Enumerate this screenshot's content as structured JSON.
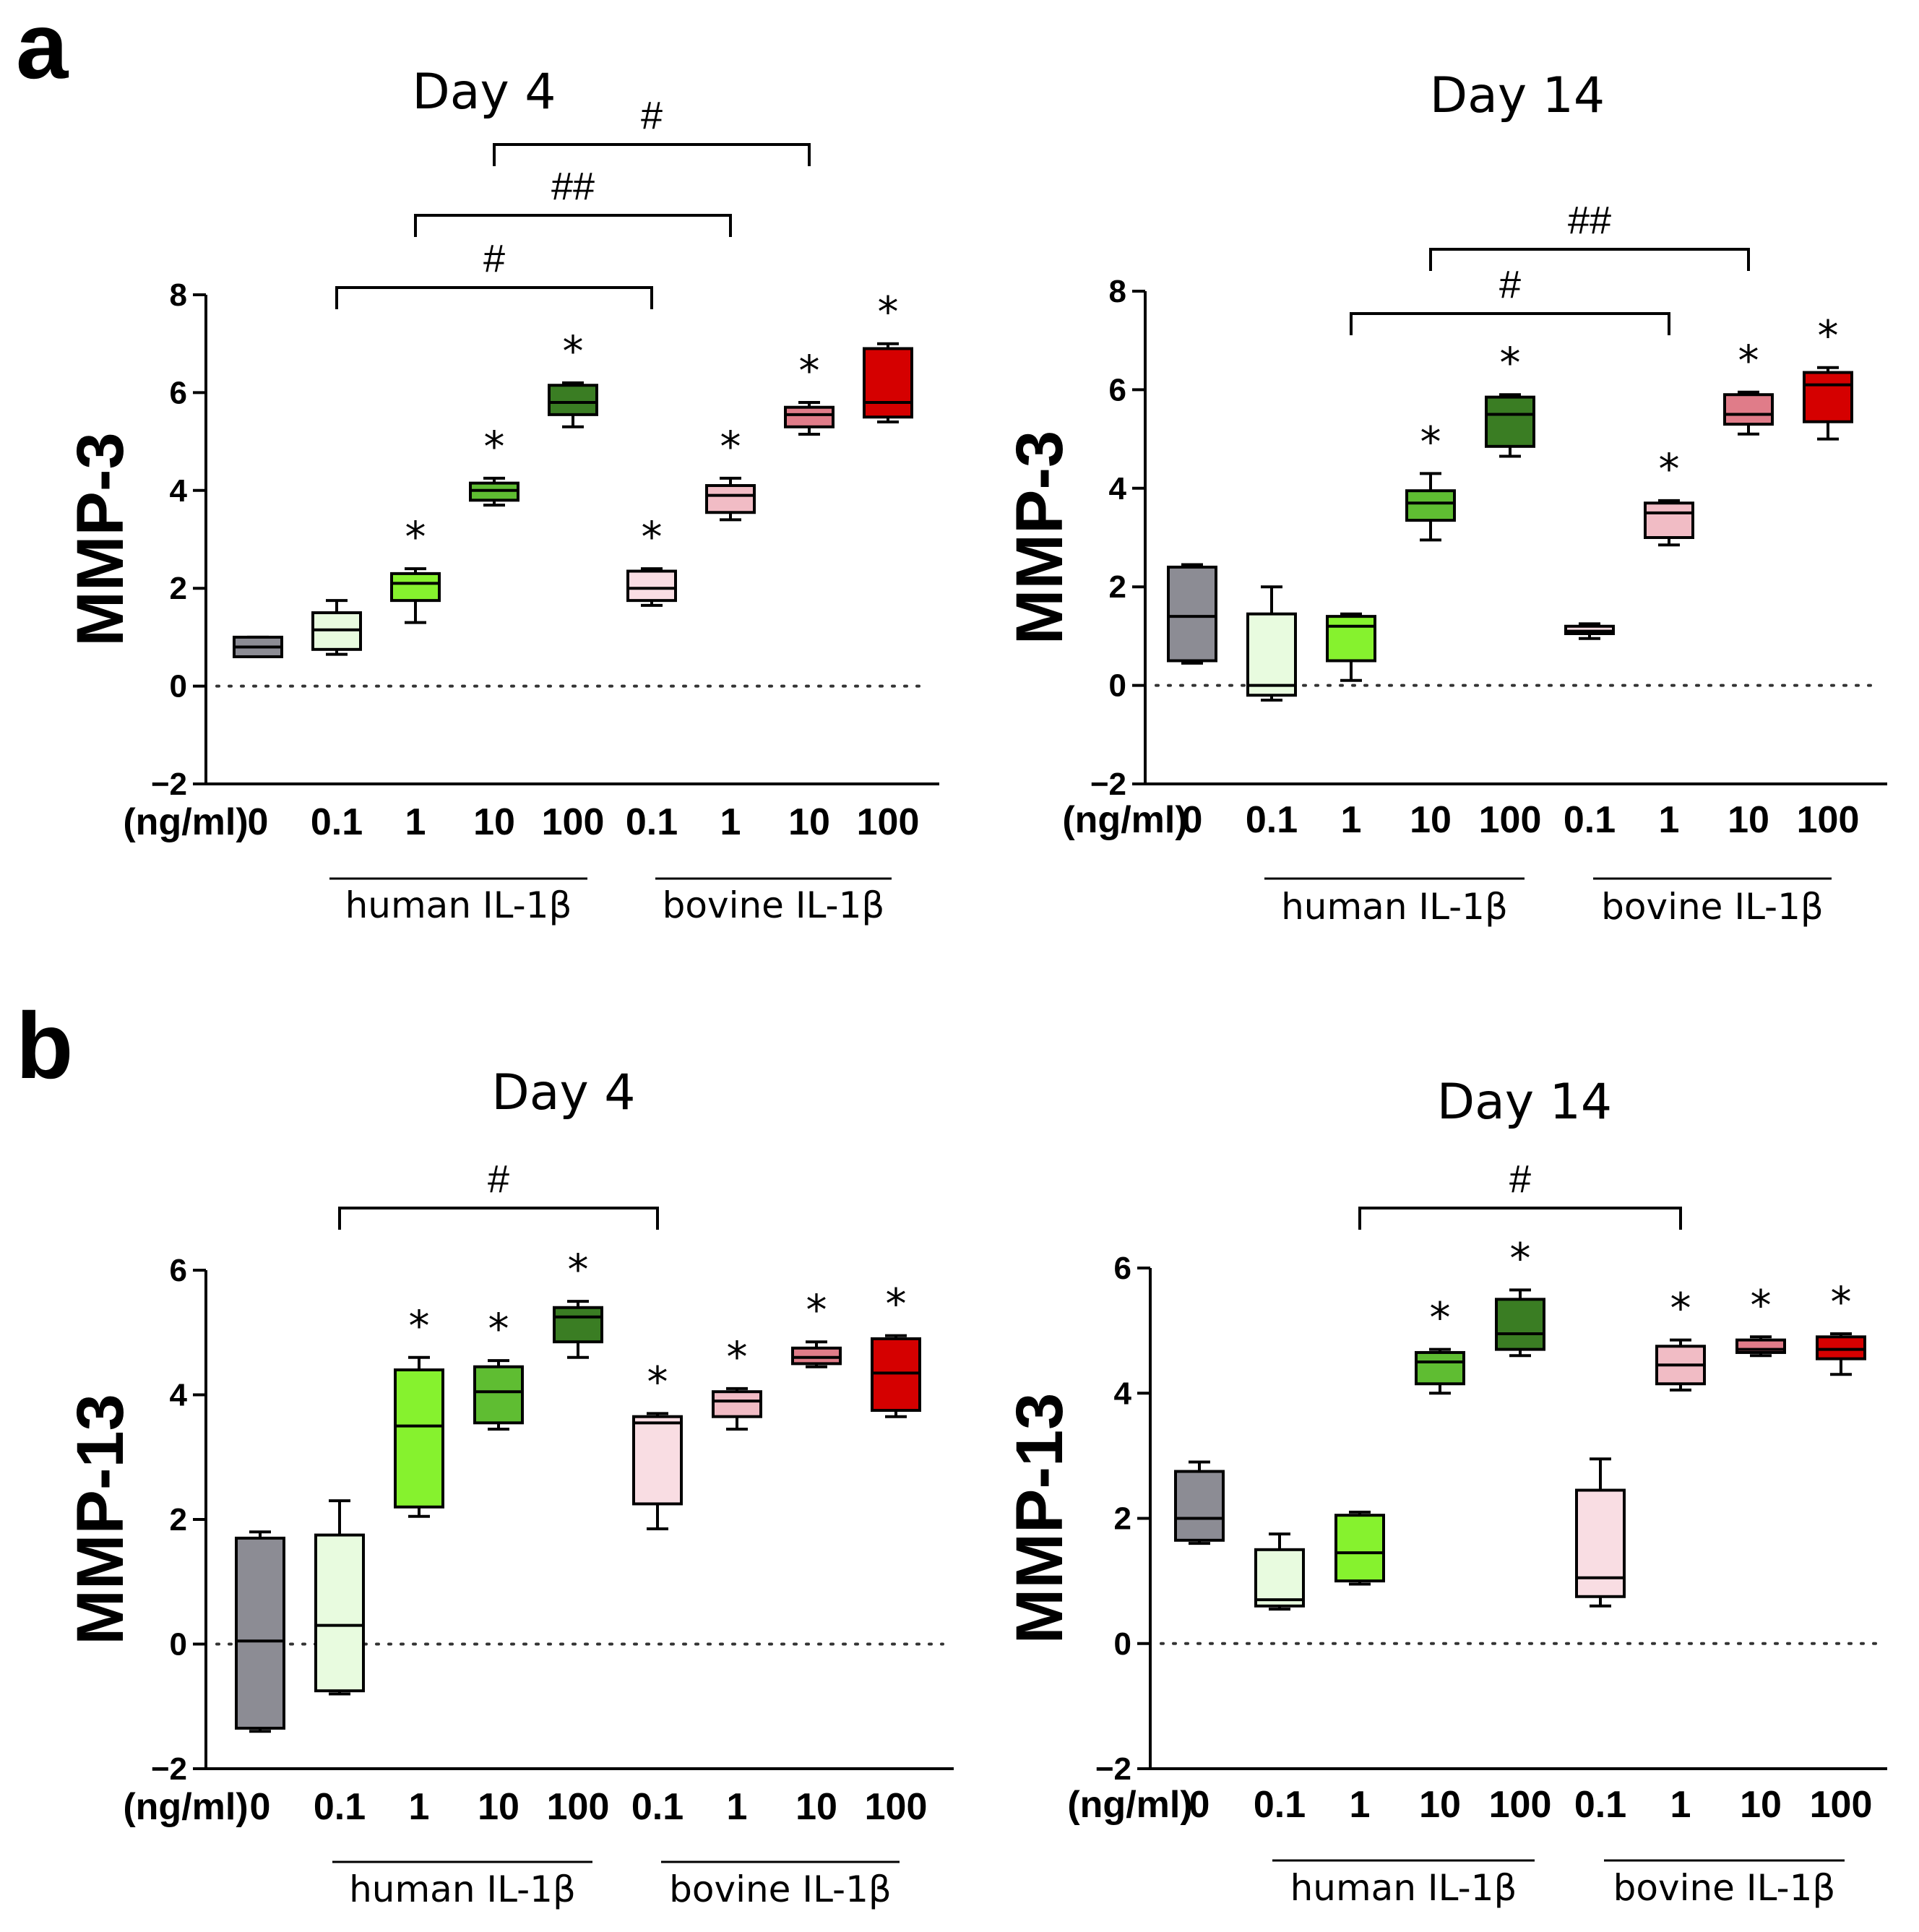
{
  "labels": {
    "unit": "(ng/ml)",
    "groups": [
      "human IL-1β",
      "bovine IL-1β"
    ]
  },
  "colors": {
    "boxes": [
      "#8c8c94",
      "#e8fbdf",
      "#86f22e",
      "#5fbd32",
      "#3a7d23",
      "#f9dde3",
      "#f1bcc5",
      "#e07c89",
      "#d50000"
    ]
  },
  "chart_data": [
    {
      "panel": "a",
      "type": "box",
      "title": "Day 4",
      "ylabel": "MMP-3",
      "ylim": [
        -2,
        8
      ],
      "yticks": [
        -2,
        0,
        2,
        4,
        6,
        8
      ],
      "ytick_labels": [
        "−2",
        "0",
        "2",
        "4",
        "6",
        "8"
      ],
      "categories": [
        "0",
        "0.1",
        "1",
        "10",
        "100",
        "0.1",
        "1",
        "10",
        "100"
      ],
      "series": [
        {
          "min": 0.6,
          "q1": 0.6,
          "median": 0.8,
          "q3": 1.0,
          "max": 1.0
        },
        {
          "min": 0.65,
          "q1": 0.75,
          "median": 1.15,
          "q3": 1.5,
          "max": 1.75
        },
        {
          "min": 1.3,
          "q1": 1.75,
          "median": 2.1,
          "q3": 2.3,
          "max": 2.4
        },
        {
          "min": 3.7,
          "q1": 3.8,
          "median": 4.0,
          "q3": 4.15,
          "max": 4.25
        },
        {
          "min": 5.3,
          "q1": 5.55,
          "median": 5.8,
          "q3": 6.15,
          "max": 6.2
        },
        {
          "min": 1.65,
          "q1": 1.75,
          "median": 2.0,
          "q3": 2.35,
          "max": 2.4
        },
        {
          "min": 3.4,
          "q1": 3.55,
          "median": 3.9,
          "q3": 4.1,
          "max": 4.25
        },
        {
          "min": 5.15,
          "q1": 5.3,
          "median": 5.55,
          "q3": 5.7,
          "max": 5.8
        },
        {
          "min": 5.4,
          "q1": 5.5,
          "median": 5.8,
          "q3": 6.9,
          "max": 7.0
        }
      ],
      "stars": [
        "",
        "",
        "*",
        "*",
        "*",
        "*",
        "*",
        "*",
        "*"
      ],
      "brackets": [
        {
          "from": 1,
          "to": 5,
          "label": "#"
        },
        {
          "from": 2,
          "to": 6,
          "label": "##"
        },
        {
          "from": 3,
          "to": 7,
          "label": "#"
        }
      ]
    },
    {
      "panel": "",
      "type": "box",
      "title": "Day 14",
      "ylabel": "MMP-3",
      "ylim": [
        -2,
        8
      ],
      "yticks": [
        -2,
        0,
        2,
        4,
        6,
        8
      ],
      "ytick_labels": [
        "−2",
        "0",
        "2",
        "4",
        "6",
        "8"
      ],
      "categories": [
        "0",
        "0.1",
        "1",
        "10",
        "100",
        "0.1",
        "1",
        "10",
        "100"
      ],
      "series": [
        {
          "min": 0.45,
          "q1": 0.5,
          "median": 1.4,
          "q3": 2.4,
          "max": 2.45
        },
        {
          "min": -0.3,
          "q1": -0.2,
          "median": 0.0,
          "q3": 1.45,
          "max": 2.0
        },
        {
          "min": 0.1,
          "q1": 0.5,
          "median": 1.2,
          "q3": 1.4,
          "max": 1.45
        },
        {
          "min": 2.95,
          "q1": 3.35,
          "median": 3.7,
          "q3": 3.95,
          "max": 4.3
        },
        {
          "min": 4.65,
          "q1": 4.85,
          "median": 5.5,
          "q3": 5.85,
          "max": 5.9
        },
        {
          "min": 0.95,
          "q1": 1.05,
          "median": 1.1,
          "q3": 1.2,
          "max": 1.25
        },
        {
          "min": 2.85,
          "q1": 3.0,
          "median": 3.5,
          "q3": 3.7,
          "max": 3.75
        },
        {
          "min": 5.1,
          "q1": 5.3,
          "median": 5.5,
          "q3": 5.9,
          "max": 5.95
        },
        {
          "min": 5.0,
          "q1": 5.35,
          "median": 6.1,
          "q3": 6.35,
          "max": 6.45
        }
      ],
      "stars": [
        "",
        "",
        "",
        "*",
        "*",
        "",
        "*",
        "*",
        "*"
      ],
      "brackets": [
        {
          "from": 2,
          "to": 6,
          "label": "#"
        },
        {
          "from": 3,
          "to": 7,
          "label": "##"
        }
      ]
    },
    {
      "panel": "b",
      "type": "box",
      "title": "Day 4",
      "ylabel": "MMP-13",
      "ylim": [
        -2,
        6
      ],
      "yticks": [
        -2,
        0,
        2,
        4,
        6
      ],
      "ytick_labels": [
        "−2",
        "0",
        "2",
        "4",
        "6"
      ],
      "categories": [
        "0",
        "0.1",
        "1",
        "10",
        "100",
        "0.1",
        "1",
        "10",
        "100"
      ],
      "series": [
        {
          "min": -1.4,
          "q1": -1.35,
          "median": 0.05,
          "q3": 1.7,
          "max": 1.8
        },
        {
          "min": -0.8,
          "q1": -0.75,
          "median": 0.3,
          "q3": 1.75,
          "max": 2.3
        },
        {
          "min": 2.05,
          "q1": 2.2,
          "median": 3.5,
          "q3": 4.4,
          "max": 4.6
        },
        {
          "min": 3.45,
          "q1": 3.55,
          "median": 4.05,
          "q3": 4.45,
          "max": 4.55
        },
        {
          "min": 4.6,
          "q1": 4.85,
          "median": 5.25,
          "q3": 5.4,
          "max": 5.5
        },
        {
          "min": 1.85,
          "q1": 2.25,
          "median": 3.55,
          "q3": 3.65,
          "max": 3.7
        },
        {
          "min": 3.45,
          "q1": 3.65,
          "median": 3.9,
          "q3": 4.05,
          "max": 4.1
        },
        {
          "min": 4.45,
          "q1": 4.5,
          "median": 4.6,
          "q3": 4.75,
          "max": 4.85
        },
        {
          "min": 3.65,
          "q1": 3.75,
          "median": 4.35,
          "q3": 4.9,
          "max": 4.95
        }
      ],
      "stars": [
        "",
        "",
        "*",
        "*",
        "*",
        "*",
        "*",
        "*",
        "*"
      ],
      "brackets": [
        {
          "from": 1,
          "to": 5,
          "label": "#"
        }
      ]
    },
    {
      "panel": "",
      "type": "box",
      "title": "Day 14",
      "ylabel": "MMP-13",
      "ylim": [
        -2,
        6
      ],
      "yticks": [
        -2,
        0,
        2,
        4,
        6
      ],
      "ytick_labels": [
        "−2",
        "0",
        "2",
        "4",
        "6"
      ],
      "categories": [
        "0",
        "0.1",
        "1",
        "10",
        "100",
        "0.1",
        "1",
        "10",
        "100"
      ],
      "series": [
        {
          "min": 1.6,
          "q1": 1.65,
          "median": 2.0,
          "q3": 2.75,
          "max": 2.9
        },
        {
          "min": 0.55,
          "q1": 0.6,
          "median": 0.7,
          "q3": 1.5,
          "max": 1.75
        },
        {
          "min": 0.95,
          "q1": 1.0,
          "median": 1.45,
          "q3": 2.05,
          "max": 2.1
        },
        {
          "min": 4.0,
          "q1": 4.15,
          "median": 4.5,
          "q3": 4.65,
          "max": 4.7
        },
        {
          "min": 4.6,
          "q1": 4.7,
          "median": 4.95,
          "q3": 5.5,
          "max": 5.65
        },
        {
          "min": 0.6,
          "q1": 0.75,
          "median": 1.05,
          "q3": 2.45,
          "max": 2.95
        },
        {
          "min": 4.05,
          "q1": 4.15,
          "median": 4.45,
          "q3": 4.75,
          "max": 4.85
        },
        {
          "min": 4.6,
          "q1": 4.65,
          "median": 4.7,
          "q3": 4.85,
          "max": 4.9
        },
        {
          "min": 4.3,
          "q1": 4.55,
          "median": 4.7,
          "q3": 4.9,
          "max": 4.95
        }
      ],
      "stars": [
        "",
        "",
        "",
        "*",
        "*",
        "",
        "*",
        "*",
        "*"
      ],
      "brackets": [
        {
          "from": 2,
          "to": 6,
          "label": "#"
        }
      ]
    }
  ]
}
